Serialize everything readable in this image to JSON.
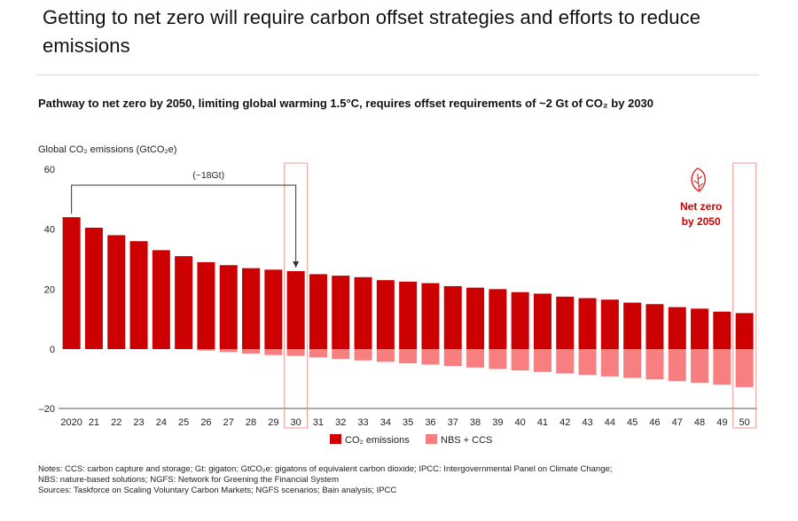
{
  "headline": "Getting to net zero will require carbon offset strategies and efforts to reduce emissions",
  "chart_data": {
    "type": "bar",
    "stacked": true,
    "title": "Pathway to net zero by 2050, limiting global warming 1.5°C, requires offset requirements of ~2 Gt of CO₂ by 2030",
    "ylabel": "Global CO₂ emissions (GtCO₂e)",
    "ylim": [
      -20,
      60
    ],
    "yticks": [
      60,
      40,
      20,
      0,
      -20
    ],
    "yticklabels": [
      "60",
      "40",
      "20",
      "0",
      "–20"
    ],
    "categories": [
      "2020",
      "21",
      "22",
      "23",
      "24",
      "25",
      "26",
      "27",
      "28",
      "29",
      "30",
      "31",
      "32",
      "33",
      "34",
      "35",
      "36",
      "37",
      "38",
      "39",
      "40",
      "41",
      "42",
      "43",
      "44",
      "45",
      "46",
      "47",
      "48",
      "49",
      "50"
    ],
    "series": [
      {
        "name": "CO₂ emissions",
        "color": "#cc0000",
        "values": [
          44,
          40.5,
          38,
          36,
          33,
          31,
          29,
          28,
          27,
          26.5,
          26,
          25,
          24.5,
          24,
          23,
          22.5,
          22,
          21,
          20.5,
          20,
          19,
          18.5,
          17.5,
          17,
          16.5,
          15.5,
          15,
          14,
          13.5,
          12.5,
          12
        ]
      },
      {
        "name": "NBS + CCS",
        "color": "#f87f7f",
        "values": [
          0,
          0,
          0,
          0,
          0,
          0,
          -0.5,
          -1,
          -1.5,
          -2,
          -2.3,
          -2.8,
          -3.3,
          -3.8,
          -4.3,
          -4.8,
          -5.2,
          -5.7,
          -6.2,
          -6.7,
          -7.2,
          -7.7,
          -8.2,
          -8.7,
          -9.2,
          -9.7,
          -10.2,
          -10.8,
          -11.4,
          -12,
          -12.8
        ]
      }
    ],
    "annotations": {
      "reduction_label": "(~18Gt)",
      "net_zero_label_1": "Net zero",
      "net_zero_label_2": "by 2050"
    },
    "highlighted_categories": [
      "30",
      "50"
    ],
    "legend_position": "bottom",
    "colors": {
      "accent": "#cc0000",
      "light": "#f87f7f",
      "highlight_box": "#f19a9a"
    }
  },
  "notes": [
    "Notes: CCS: carbon capture and storage; Gt: gigaton; GtCO₂e: gigatons of equivalent carbon dioxide; IPCC: Intergovernmental Panel on Climate Change;",
    "NBS: nature-based solutions; NGFS: Network for Greening the Financial System",
    "Sources: Taskforce on Scaling Voluntary Carbon Markets; NGFS scenarios; Bain analysis; IPCC"
  ],
  "icons": {
    "net_zero": "leaf-icon"
  }
}
